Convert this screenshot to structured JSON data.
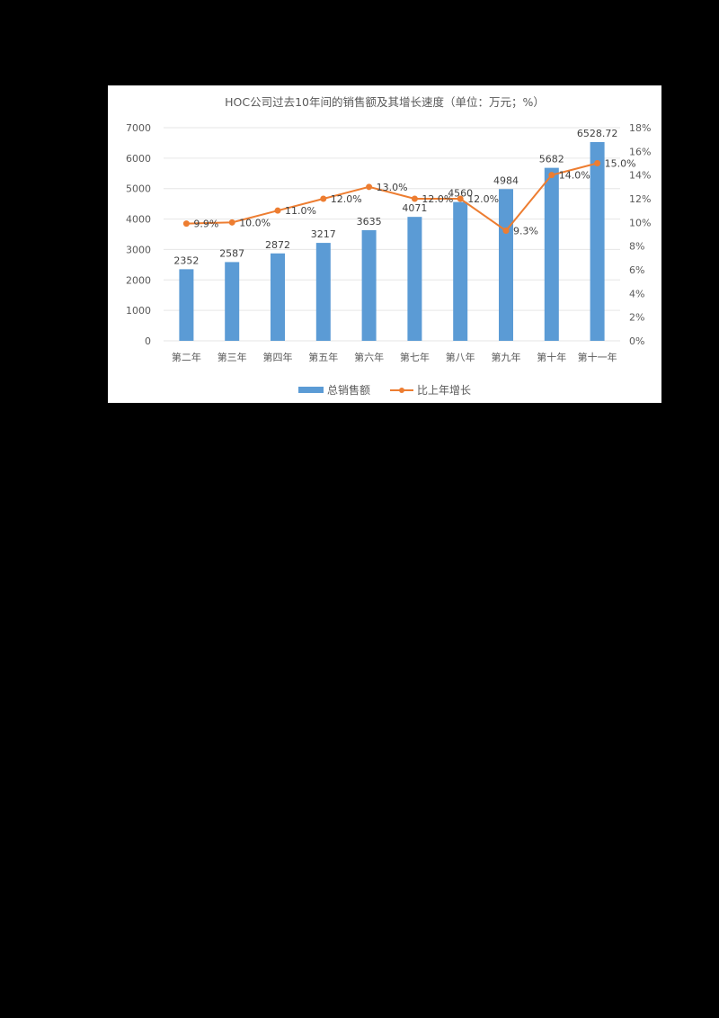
{
  "chart_data": {
    "type": "bar+line",
    "title": "HOC公司过去10年间的销售额及其增长速度（单位：万元；%）",
    "categories": [
      "第二年",
      "第三年",
      "第四年",
      "第五年",
      "第六年",
      "第七年",
      "第八年",
      "第九年",
      "第十年",
      "第十一年"
    ],
    "series": [
      {
        "name": "总销售额",
        "type": "bar",
        "axis": "left",
        "color": "#5b9bd5",
        "values": [
          2352,
          2587,
          2872,
          3217,
          3635,
          4071,
          4560,
          4984,
          5682,
          6528.72
        ],
        "labels": [
          "2352",
          "2587",
          "2872",
          "3217",
          "3635",
          "4071",
          "4560",
          "4984",
          "5682",
          "6528.72"
        ]
      },
      {
        "name": "比上年增长",
        "type": "line",
        "axis": "right",
        "color": "#ed7d31",
        "values": [
          9.9,
          10.0,
          11.0,
          12.0,
          13.0,
          12.0,
          12.0,
          9.3,
          14.0,
          15.0
        ],
        "labels": [
          "9.9%",
          "10.0%",
          "11.0%",
          "12.0%",
          "13.0%",
          "12.0%",
          "12.0%",
          "9.3%",
          "14.0%",
          "15.0%"
        ]
      }
    ],
    "left_axis": {
      "min": 0,
      "max": 7000,
      "step": 1000,
      "ticks": [
        "0",
        "1000",
        "2000",
        "3000",
        "4000",
        "5000",
        "6000",
        "7000"
      ]
    },
    "right_axis": {
      "min": 0,
      "max": 18,
      "step": 2,
      "ticks": [
        "0%",
        "2%",
        "4%",
        "6%",
        "8%",
        "10%",
        "12%",
        "14%",
        "16%",
        "18%"
      ]
    },
    "grid": true,
    "legend_position": "bottom"
  }
}
